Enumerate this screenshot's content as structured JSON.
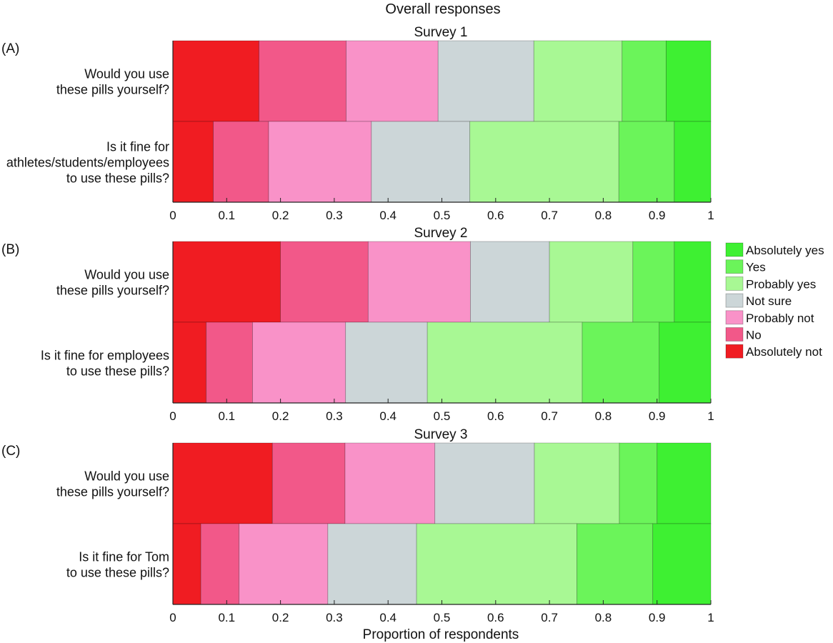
{
  "chart_data": {
    "type": "bar",
    "orientation": "horizontal",
    "stacked": true,
    "title": "Overall responses",
    "xlabel": "Proportion of respondents",
    "xlim": [
      0,
      1
    ],
    "xticks": [
      "0",
      "0.1",
      "0.2",
      "0.3",
      "0.4",
      "0.5",
      "0.6",
      "0.7",
      "0.8",
      "0.9",
      "1"
    ],
    "legend_position": "right",
    "legend": [
      {
        "name": "Absolutely yes",
        "color": "#3ef032"
      },
      {
        "name": "Yes",
        "color": "#6bf45a"
      },
      {
        "name": "Probably yes",
        "color": "#a8f894"
      },
      {
        "name": "Not sure",
        "color": "#ccd6d8"
      },
      {
        "name": "Probably not",
        "color": "#f992c8"
      },
      {
        "name": "No",
        "color": "#f25889"
      },
      {
        "name": "Absolutely not",
        "color": "#f01c22"
      }
    ],
    "stack_order": [
      "Absolutely not",
      "No",
      "Probably not",
      "Not sure",
      "Probably yes",
      "Yes",
      "Absolutely yes"
    ],
    "panels": [
      {
        "tag": "(A)",
        "subtitle": "Survey 1",
        "questions": [
          {
            "label": [
              "Would you use",
              "these pills yourself?"
            ],
            "values": [
              0.16,
              0.162,
              0.171,
              0.178,
              0.164,
              0.082,
              0.083
            ]
          },
          {
            "label": [
              "Is it fine for",
              "athletes/students/employees",
              "to use these pills?"
            ],
            "values": [
              0.075,
              0.103,
              0.191,
              0.183,
              0.277,
              0.103,
              0.068
            ]
          }
        ]
      },
      {
        "tag": "(B)",
        "subtitle": "Survey 2",
        "questions": [
          {
            "label": [
              "Would you use",
              "these pills yourself?"
            ],
            "values": [
              0.2,
              0.163,
              0.19,
              0.147,
              0.155,
              0.077,
              0.068
            ]
          },
          {
            "label": [
              "Is it fine for employees",
              "to use these pills?"
            ],
            "values": [
              0.062,
              0.086,
              0.173,
              0.152,
              0.288,
              0.143,
              0.096
            ]
          }
        ]
      },
      {
        "tag": "(C)",
        "subtitle": "Survey 3",
        "questions": [
          {
            "label": [
              "Would you use",
              "these pills yourself?"
            ],
            "values": [
              0.185,
              0.135,
              0.167,
              0.185,
              0.158,
              0.07,
              0.1
            ]
          },
          {
            "label": [
              "Is it fine for Tom",
              "to use these pills?"
            ],
            "values": [
              0.052,
              0.071,
              0.165,
              0.165,
              0.298,
              0.141,
              0.108
            ]
          }
        ]
      }
    ]
  }
}
